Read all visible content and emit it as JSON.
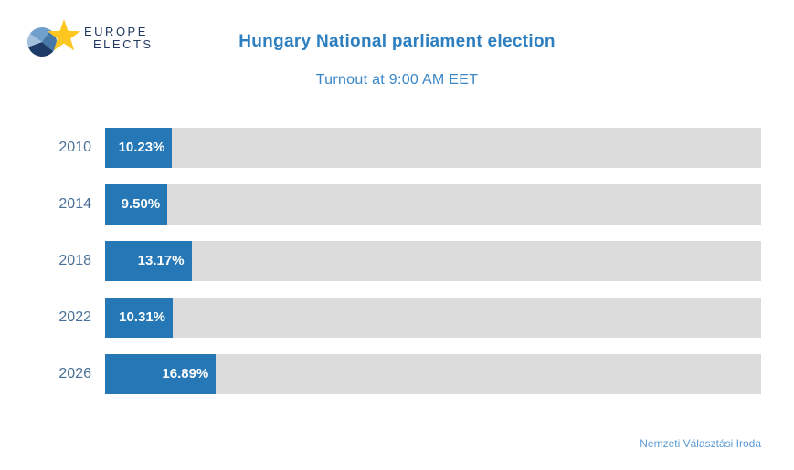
{
  "logo": {
    "line1": "EUROPE",
    "line2": "ELECTS"
  },
  "header": {
    "title": "Hungary National parliament election",
    "subtitle": "Turnout at 9:00 AM EET"
  },
  "source": "Nemzeti Választási Iroda",
  "colors": {
    "bar_blue": "#2578b5",
    "track_gray": "#dcdcdc",
    "title_blue": "#2e7fc0",
    "subtitle_blue": "#3a87c8",
    "year_label_blue": "#4a7097",
    "source_blue": "#5b9bd5",
    "logo_navy": "#203864",
    "star_yellow": "#fdc620"
  },
  "chart_data": {
    "type": "bar",
    "orientation": "horizontal",
    "title": "Hungary National parliament election",
    "subtitle": "Turnout at 9:00 AM EET",
    "categories": [
      "2010",
      "2014",
      "2018",
      "2022",
      "2026"
    ],
    "values": [
      10.23,
      9.5,
      13.17,
      10.31,
      16.89
    ],
    "bar_labels": [
      "10.23%",
      "9.50%",
      "13.17%",
      "10.31%",
      "16.89%"
    ],
    "unit": "%",
    "xlim": [
      0,
      100
    ],
    "grid": false,
    "legend": false,
    "source": "Nemzeti Választási Iroda"
  }
}
